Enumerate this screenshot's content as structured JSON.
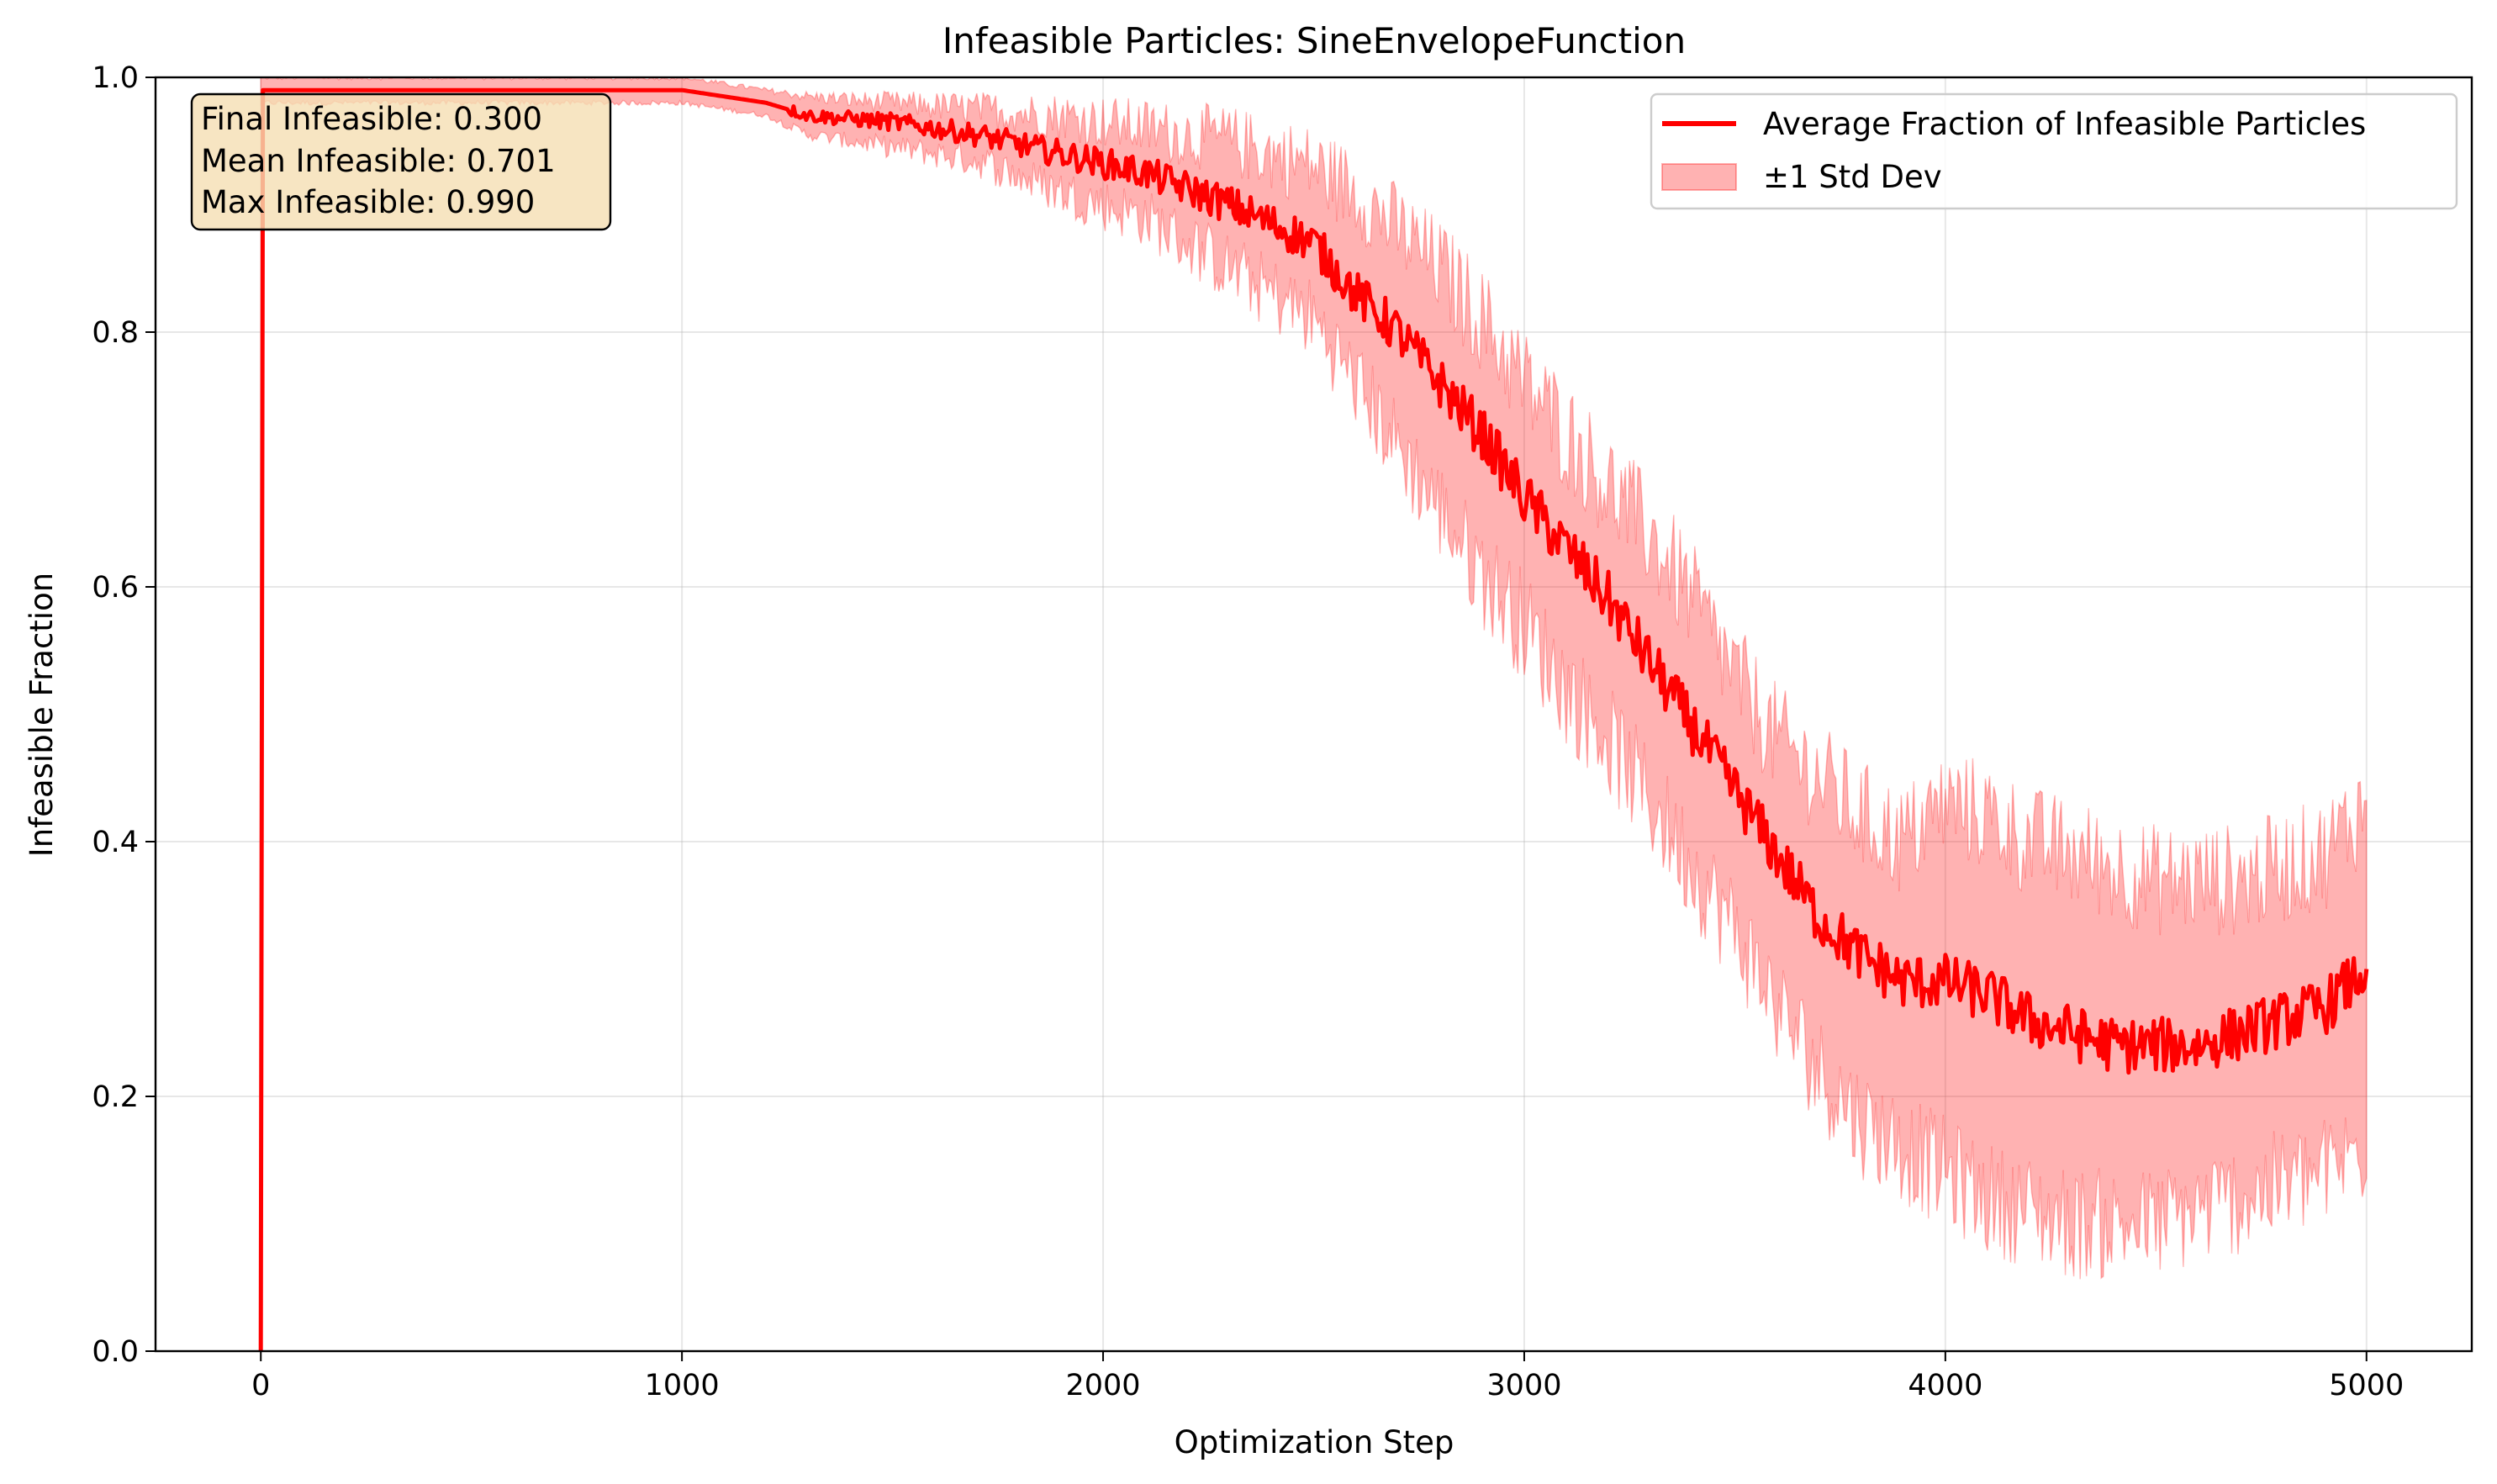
{
  "chart_data": {
    "type": "line",
    "title": "Infeasible Particles: SineEnvelopeFunction",
    "xlabel": "Optimization Step",
    "ylabel": "Infeasible Fraction",
    "xlim": [
      -250,
      5250
    ],
    "ylim": [
      0.0,
      1.0
    ],
    "x_ticks": [
      0,
      1000,
      2000,
      3000,
      4000,
      5000
    ],
    "y_ticks": [
      0.0,
      0.2,
      0.4,
      0.6,
      0.8,
      1.0
    ],
    "x_tick_labels": [
      "0",
      "1000",
      "2000",
      "3000",
      "4000",
      "5000"
    ],
    "y_tick_labels": [
      "0.0",
      "0.2",
      "0.4",
      "0.6",
      "0.8",
      "1.0"
    ],
    "grid": true,
    "legend": {
      "position": "top-right",
      "entries": [
        "Average Fraction of Infeasible Particles",
        "±1 Std Dev"
      ]
    },
    "annotation": [
      "Final Infeasible: 0.300",
      "Mean Infeasible: 0.701",
      "Max Infeasible: 0.990"
    ],
    "series": [
      {
        "name": "Average Fraction of Infeasible Particles",
        "color": "#ff0000",
        "x": [
          0,
          5,
          10,
          1000,
          1100,
          1200,
          1300,
          1500,
          1700,
          1900,
          2100,
          2300,
          2500,
          2600,
          2700,
          2800,
          2900,
          3000,
          3100,
          3200,
          3300,
          3400,
          3500,
          3600,
          3700,
          3800,
          3900,
          4000,
          4100,
          4200,
          4300,
          4400,
          4500,
          4600,
          4700,
          4800,
          4900,
          5000
        ],
        "y": [
          0.0,
          0.99,
          0.99,
          0.99,
          0.985,
          0.98,
          0.97,
          0.965,
          0.955,
          0.94,
          0.925,
          0.9,
          0.87,
          0.83,
          0.8,
          0.76,
          0.72,
          0.67,
          0.63,
          0.59,
          0.54,
          0.49,
          0.44,
          0.39,
          0.34,
          0.31,
          0.29,
          0.29,
          0.28,
          0.26,
          0.25,
          0.24,
          0.24,
          0.24,
          0.25,
          0.26,
          0.27,
          0.3
        ]
      },
      {
        "name": "±1 Std Dev",
        "color": "#ff0000",
        "opacity": 0.3,
        "x": [
          0,
          1000,
          1200,
          1300,
          1500,
          1700,
          1900,
          2100,
          2300,
          2500,
          2600,
          2700,
          2800,
          2900,
          3000,
          3100,
          3200,
          3300,
          3400,
          3500,
          3600,
          3700,
          3800,
          3900,
          4000,
          4100,
          4200,
          4300,
          4400,
          4500,
          4600,
          4700,
          4800,
          4900,
          5000
        ],
        "upper": [
          1.0,
          1.0,
          0.99,
          0.985,
          0.98,
          0.975,
          0.97,
          0.96,
          0.95,
          0.93,
          0.91,
          0.88,
          0.85,
          0.81,
          0.76,
          0.72,
          0.68,
          0.64,
          0.59,
          0.53,
          0.48,
          0.45,
          0.42,
          0.4,
          0.43,
          0.42,
          0.4,
          0.39,
          0.38,
          0.37,
          0.37,
          0.37,
          0.38,
          0.39,
          0.43
        ],
        "lower": [
          0.98,
          0.98,
          0.97,
          0.955,
          0.945,
          0.935,
          0.91,
          0.89,
          0.85,
          0.81,
          0.76,
          0.71,
          0.66,
          0.61,
          0.57,
          0.52,
          0.48,
          0.43,
          0.38,
          0.33,
          0.27,
          0.22,
          0.18,
          0.16,
          0.14,
          0.12,
          0.11,
          0.1,
          0.1,
          0.1,
          0.11,
          0.12,
          0.13,
          0.14,
          0.16
        ]
      }
    ]
  }
}
